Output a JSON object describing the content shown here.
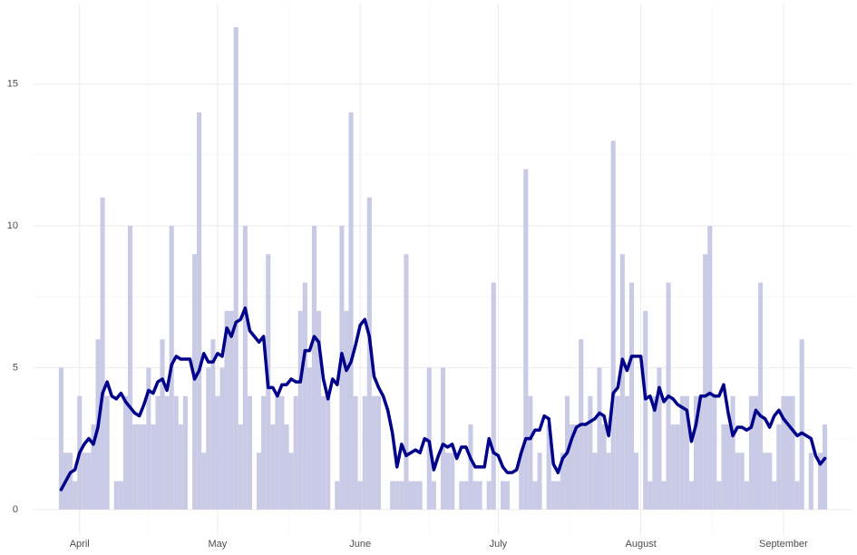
{
  "chart_data": {
    "type": "bar",
    "x": [
      -4,
      -3,
      -2,
      -1,
      0,
      1,
      2,
      3,
      4,
      5,
      6,
      7,
      8,
      9,
      10,
      11,
      12,
      13,
      14,
      15,
      16,
      17,
      18,
      19,
      20,
      21,
      22,
      23,
      24,
      25,
      26,
      27,
      28,
      29,
      30,
      31,
      32,
      33,
      34,
      35,
      36,
      37,
      38,
      39,
      40,
      41,
      42,
      43,
      44,
      45,
      46,
      47,
      48,
      49,
      50,
      51,
      52,
      53,
      54,
      55,
      56,
      57,
      58,
      59,
      60,
      61,
      62,
      63,
      64,
      65,
      66,
      67,
      68,
      69,
      70,
      71,
      72,
      73,
      74,
      75,
      76,
      77,
      78,
      79,
      80,
      81,
      82,
      83,
      84,
      85,
      86,
      87,
      88,
      89,
      90,
      91,
      92,
      93,
      94,
      95,
      96,
      97,
      98,
      99,
      100,
      101,
      102,
      103,
      104,
      105,
      106,
      107,
      108,
      109,
      110,
      111,
      112,
      113,
      114,
      115,
      116,
      117,
      118,
      119,
      120,
      121,
      122,
      123,
      124,
      125,
      126,
      127,
      128,
      129,
      130,
      131,
      132,
      133,
      134,
      135,
      136,
      137,
      138,
      139,
      140,
      141,
      142,
      143,
      144,
      145,
      146,
      147,
      148,
      149,
      150,
      151,
      152,
      153,
      154,
      155,
      156,
      157,
      158,
      159,
      160,
      161,
      162
    ],
    "series": [
      {
        "type": "bar",
        "color": "#c9cae6",
        "values": [
          5,
          2,
          2,
          1,
          4,
          2,
          2,
          3,
          6,
          11,
          4,
          0,
          1,
          1,
          4,
          10,
          3,
          3,
          3,
          5,
          3,
          4,
          6,
          4,
          10,
          4,
          3,
          4,
          0,
          9,
          14,
          2,
          5,
          6,
          4,
          5,
          7,
          7,
          17,
          3,
          10,
          4,
          0,
          2,
          4,
          9,
          3,
          4,
          4,
          3,
          2,
          4,
          7,
          8,
          5,
          10,
          7,
          4,
          4,
          0,
          1,
          10,
          7,
          14,
          4,
          1,
          4,
          11,
          4,
          4,
          0,
          0,
          1,
          1,
          1,
          9,
          1,
          1,
          1,
          0,
          5,
          1,
          0,
          5,
          2,
          2,
          0,
          1,
          1,
          3,
          1,
          1,
          0,
          1,
          8,
          0,
          1,
          1,
          0,
          0,
          2,
          12,
          4,
          1,
          2,
          0,
          3,
          1,
          1,
          2,
          4,
          3,
          3,
          6,
          3,
          4,
          2,
          5,
          3,
          2,
          13,
          4,
          9,
          4,
          8,
          2,
          0,
          7,
          1,
          4,
          5,
          1,
          8,
          3,
          3,
          4,
          4,
          1,
          4,
          4,
          9,
          10,
          4,
          1,
          3,
          3,
          4,
          2,
          2,
          1,
          4,
          4,
          8,
          2,
          2,
          1,
          3,
          4,
          4,
          4,
          1,
          6,
          0,
          2,
          0,
          2,
          3
        ]
      },
      {
        "type": "line",
        "color": "#00008b",
        "values": [
          0.7,
          1.0,
          1.3,
          1.4,
          2.0,
          2.3,
          2.5,
          2.3,
          2.9,
          4.1,
          4.5,
          4.0,
          3.9,
          4.1,
          3.8,
          3.6,
          3.4,
          3.3,
          3.7,
          4.2,
          4.1,
          4.5,
          4.6,
          4.2,
          5.1,
          5.4,
          5.3,
          5.3,
          5.3,
          4.6,
          4.9,
          5.5,
          5.2,
          5.2,
          5.5,
          5.4,
          6.4,
          6.1,
          6.6,
          6.7,
          7.1,
          6.3,
          6.1,
          5.9,
          6.1,
          4.3,
          4.3,
          4.0,
          4.4,
          4.4,
          4.6,
          4.5,
          4.5,
          5.6,
          5.6,
          6.1,
          5.9,
          4.6,
          3.9,
          4.6,
          4.4,
          5.5,
          4.9,
          5.2,
          5.8,
          6.5,
          6.7,
          6.1,
          4.7,
          4.3,
          4.0,
          3.5,
          2.7,
          1.5,
          2.3,
          1.9,
          2.0,
          2.1,
          2.0,
          2.5,
          2.4,
          1.4,
          1.9,
          2.3,
          2.2,
          2.3,
          1.8,
          2.2,
          2.2,
          1.8,
          1.5,
          1.5,
          1.5,
          2.5,
          2.0,
          1.9,
          1.5,
          1.3,
          1.3,
          1.4,
          2.0,
          2.5,
          2.5,
          2.8,
          2.8,
          3.3,
          3.2,
          1.6,
          1.3,
          1.8,
          2.0,
          2.5,
          2.9,
          3.0,
          3.0,
          3.1,
          3.2,
          3.4,
          3.3,
          2.6,
          4.1,
          4.3,
          5.3,
          4.9,
          5.4,
          5.4,
          5.4,
          3.9,
          4.0,
          3.5,
          4.3,
          3.8,
          4.0,
          3.9,
          3.7,
          3.6,
          3.5,
          2.4,
          3.0,
          4.0,
          4.0,
          4.1,
          4.0,
          4.0,
          4.4,
          3.4,
          2.6,
          2.9,
          2.9,
          2.8,
          2.9,
          3.5,
          3.3,
          3.2,
          2.9,
          3.3,
          3.5,
          3.2,
          3.0,
          2.8,
          2.6,
          2.7,
          2.6,
          2.5,
          1.9,
          1.6,
          1.8
        ]
      }
    ],
    "xlim": [
      -10,
      168
    ],
    "xticks": [
      {
        "value": 0,
        "label": "April"
      },
      {
        "value": 30,
        "label": "May"
      },
      {
        "value": 61,
        "label": "June"
      },
      {
        "value": 91,
        "label": "July"
      },
      {
        "value": 122,
        "label": "August"
      },
      {
        "value": 153,
        "label": "September"
      }
    ],
    "ylim": [
      -0.9,
      17.8
    ],
    "yticks": [
      0,
      5,
      10,
      15
    ],
    "grid": true
  }
}
